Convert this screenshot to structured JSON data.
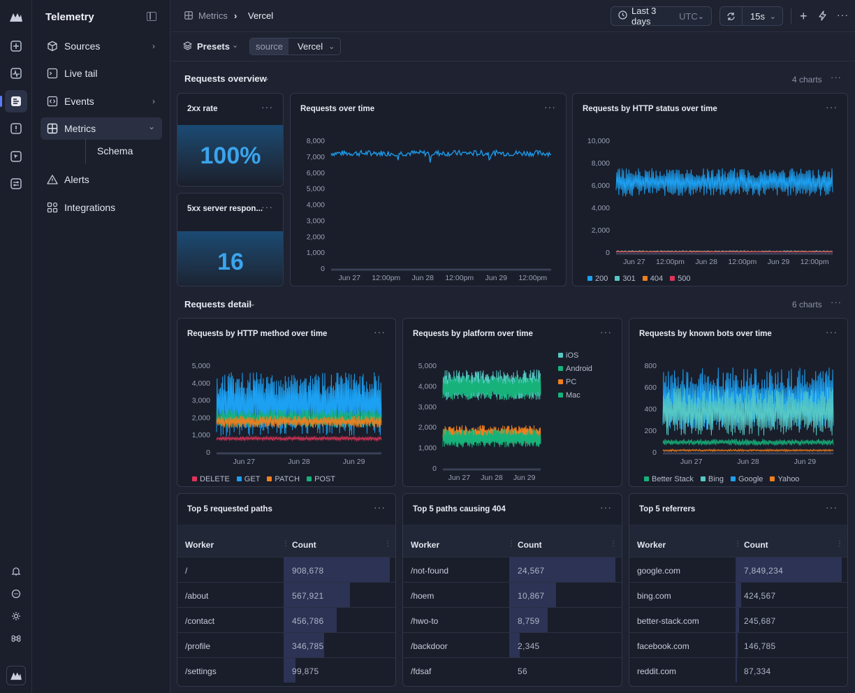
{
  "app": {
    "title": "Telemetry"
  },
  "nav": [
    {
      "label": "Sources",
      "icon": "cube-icon",
      "chevron": "›"
    },
    {
      "label": "Live tail",
      "icon": "terminal-icon"
    },
    {
      "label": "Events",
      "icon": "code-icon",
      "chevron": "›"
    },
    {
      "label": "Metrics",
      "icon": "grid-icon",
      "chevron": "⌄",
      "active": true
    },
    {
      "label": "Alerts",
      "icon": "warning-icon"
    },
    {
      "label": "Integrations",
      "icon": "puzzle-icon"
    }
  ],
  "sub_nav": {
    "label": "Schema"
  },
  "breadcrumb": {
    "root": "Metrics",
    "current": "Vercel"
  },
  "topbar": {
    "range": "Last 3 days",
    "tz": "UTC",
    "refresh": "15s"
  },
  "filters": {
    "presets": "Presets",
    "source_key": "source",
    "source_value": "Vercel"
  },
  "sections": {
    "overview": {
      "title": "Requests overview",
      "count": "4 charts"
    },
    "detail": {
      "title": "Requests detail",
      "count": "6 charts"
    }
  },
  "colors": {
    "blue": "#1ca0f2",
    "teal": "#56c8c4",
    "orange": "#f07f1e",
    "red": "#e03458",
    "green": "#16b27a"
  },
  "stats": {
    "rate": {
      "title": "2xx rate",
      "value": "100%"
    },
    "errors": {
      "title": "5xx server respon...",
      "value": "16"
    }
  },
  "chart_data": [
    {
      "type": "line",
      "title": "Requests over time",
      "y_ticks": [
        "8,000",
        "7,000",
        "6,000",
        "5,000",
        "4,000",
        "3,000",
        "2,000",
        "1,000",
        "0"
      ],
      "x_ticks": [
        "Jun 27",
        "12:00pm",
        "Jun 28",
        "12:00pm",
        "Jun 29",
        "12:00pm"
      ],
      "ylim": [
        0,
        8000
      ],
      "series": [
        {
          "name": "Requests",
          "approx_level": 7200
        }
      ]
    },
    {
      "type": "line",
      "title": "Requests by HTTP status over time",
      "y_ticks": [
        "10,000",
        "8,000",
        "6,000",
        "4,000",
        "2,000",
        "0"
      ],
      "x_ticks": [
        "Jun 27",
        "12:00pm",
        "Jun 28",
        "12:00pm",
        "Jun 29",
        "12:00pm"
      ],
      "ylim": [
        0,
        10000
      ],
      "legend": [
        "200",
        "301",
        "404",
        "500"
      ]
    },
    {
      "type": "line",
      "title": "Requests by HTTP method over time",
      "y_ticks": [
        "5,000",
        "4,000",
        "3,000",
        "2,000",
        "1,000",
        "0"
      ],
      "x_ticks": [
        "Jun 27",
        "Jun 28",
        "Jun 29"
      ],
      "ylim": [
        0,
        5000
      ],
      "legend": [
        "DELETE",
        "GET",
        "PATCH",
        "POST"
      ]
    },
    {
      "type": "line",
      "title": "Requests by platform over time",
      "y_ticks": [
        "5,000",
        "4,000",
        "3,000",
        "2,000",
        "1,000",
        "0"
      ],
      "x_ticks": [
        "Jun 27",
        "Jun 28",
        "Jun 29"
      ],
      "ylim": [
        0,
        5000
      ],
      "legend": [
        "iOS",
        "Android",
        "PC",
        "Mac"
      ]
    },
    {
      "type": "line",
      "title": "Requests by known bots over time",
      "y_ticks": [
        "800",
        "600",
        "400",
        "200",
        "0"
      ],
      "x_ticks": [
        "Jun 27",
        "Jun 28",
        "Jun 29"
      ],
      "ylim": [
        0,
        800
      ],
      "legend": [
        "Better Stack",
        "Bing",
        "Google",
        "Yahoo"
      ]
    }
  ],
  "tables": [
    {
      "title": "Top 5 requested paths",
      "col1": "Worker",
      "col2": "Count",
      "rows": [
        {
          "path": "/",
          "count": "908,678",
          "frac": 1.0
        },
        {
          "path": "/about",
          "count": "567,921",
          "frac": 0.625
        },
        {
          "path": "/contact",
          "count": "456,786",
          "frac": 0.5
        },
        {
          "path": "/profile",
          "count": "346,785",
          "frac": 0.38
        },
        {
          "path": "/settings",
          "count": "99,875",
          "frac": 0.11
        }
      ]
    },
    {
      "title": "Top 5 paths causing 404",
      "col1": "Worker",
      "col2": "Count",
      "rows": [
        {
          "path": "/not-found",
          "count": "24,567",
          "frac": 1.0
        },
        {
          "path": "/hoem",
          "count": "10,867",
          "frac": 0.44
        },
        {
          "path": "/hwo-to",
          "count": "8,759",
          "frac": 0.36
        },
        {
          "path": "/backdoor",
          "count": "2,345",
          "frac": 0.1
        },
        {
          "path": "/fdsaf",
          "count": "56",
          "frac": 0.0
        }
      ]
    },
    {
      "title": "Top 5 referrers",
      "col1": "Worker",
      "col2": "Count",
      "rows": [
        {
          "path": "google.com",
          "count": "7,849,234",
          "frac": 1.0
        },
        {
          "path": "bing.com",
          "count": "424,567",
          "frac": 0.054
        },
        {
          "path": "better-stack.com",
          "count": "245,687",
          "frac": 0.031
        },
        {
          "path": "facebook.com",
          "count": "146,785",
          "frac": 0.019
        },
        {
          "path": "reddit.com",
          "count": "87,334",
          "frac": 0.011
        }
      ]
    }
  ]
}
